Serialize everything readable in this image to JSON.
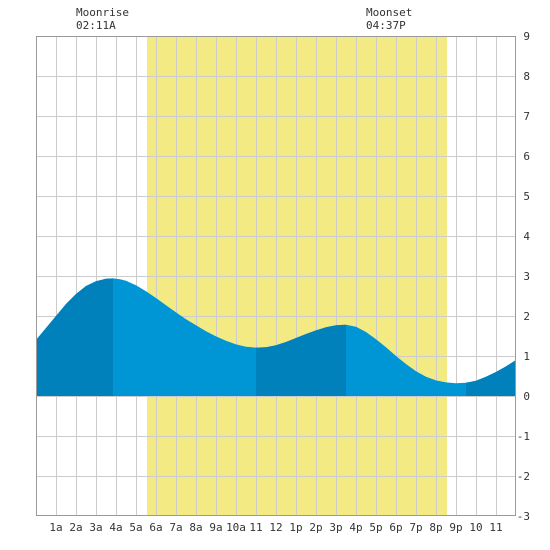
{
  "moon": {
    "rise_label": "Moonrise",
    "rise_time": "02:11A",
    "set_label": "Moonset",
    "set_time": "04:37P"
  },
  "colors": {
    "daylight": "#f3ea84",
    "tide_fill": "#0096d6",
    "tide_dark": "#0081bc",
    "grid": "#cccccc",
    "frame": "#999999"
  },
  "chart_data": {
    "type": "area",
    "title": "",
    "xlabel": "",
    "ylabel": "",
    "xlim": [
      0,
      24
    ],
    "ylim": [
      -3,
      9
    ],
    "grid": true,
    "x_ticks": [
      {
        "x": 1,
        "label": "1a"
      },
      {
        "x": 2,
        "label": "2a"
      },
      {
        "x": 3,
        "label": "3a"
      },
      {
        "x": 4,
        "label": "4a"
      },
      {
        "x": 5,
        "label": "5a"
      },
      {
        "x": 6,
        "label": "6a"
      },
      {
        "x": 7,
        "label": "7a"
      },
      {
        "x": 8,
        "label": "8a"
      },
      {
        "x": 9,
        "label": "9a"
      },
      {
        "x": 10,
        "label": "10a"
      },
      {
        "x": 11,
        "label": "11"
      },
      {
        "x": 12,
        "label": "12"
      },
      {
        "x": 13,
        "label": "1p"
      },
      {
        "x": 14,
        "label": "2p"
      },
      {
        "x": 15,
        "label": "3p"
      },
      {
        "x": 16,
        "label": "4p"
      },
      {
        "x": 17,
        "label": "5p"
      },
      {
        "x": 18,
        "label": "6p"
      },
      {
        "x": 19,
        "label": "7p"
      },
      {
        "x": 20,
        "label": "8p"
      },
      {
        "x": 21,
        "label": "9p"
      },
      {
        "x": 22,
        "label": "10"
      },
      {
        "x": 23,
        "label": "11"
      }
    ],
    "y_ticks": [
      -3,
      -2,
      -1,
      0,
      1,
      2,
      3,
      4,
      5,
      6,
      7,
      8,
      9
    ],
    "daylight": {
      "start": 5.55,
      "end": 20.55
    },
    "series": [
      {
        "x": [
          0,
          0.5,
          1,
          1.5,
          2,
          2.5,
          3,
          3.5,
          3.85,
          4.2,
          4.5,
          5,
          5.5,
          6,
          6.5,
          7,
          7.5,
          8,
          8.5,
          9,
          9.5,
          10,
          10.5,
          11,
          11.5,
          12,
          12.5,
          13,
          13.5,
          14,
          14.5,
          15,
          15.5,
          16,
          16.5,
          17,
          17.5,
          18,
          18.5,
          19,
          19.5,
          20,
          20.5,
          21,
          21.5,
          22,
          22.5,
          23,
          23.5,
          24
        ],
        "values": [
          1.4,
          1.7,
          2.0,
          2.3,
          2.55,
          2.75,
          2.87,
          2.93,
          2.94,
          2.92,
          2.88,
          2.77,
          2.62,
          2.45,
          2.27,
          2.09,
          1.92,
          1.77,
          1.62,
          1.49,
          1.38,
          1.29,
          1.23,
          1.21,
          1.22,
          1.27,
          1.35,
          1.45,
          1.55,
          1.64,
          1.72,
          1.77,
          1.78,
          1.73,
          1.6,
          1.42,
          1.22,
          1.0,
          0.8,
          0.62,
          0.48,
          0.39,
          0.34,
          0.32,
          0.33,
          0.38,
          0.48,
          0.6,
          0.74,
          0.9
        ]
      }
    ],
    "dark_bands": [
      [
        0,
        3.85
      ],
      [
        11.0,
        15.5
      ],
      [
        21.5,
        24
      ]
    ]
  }
}
